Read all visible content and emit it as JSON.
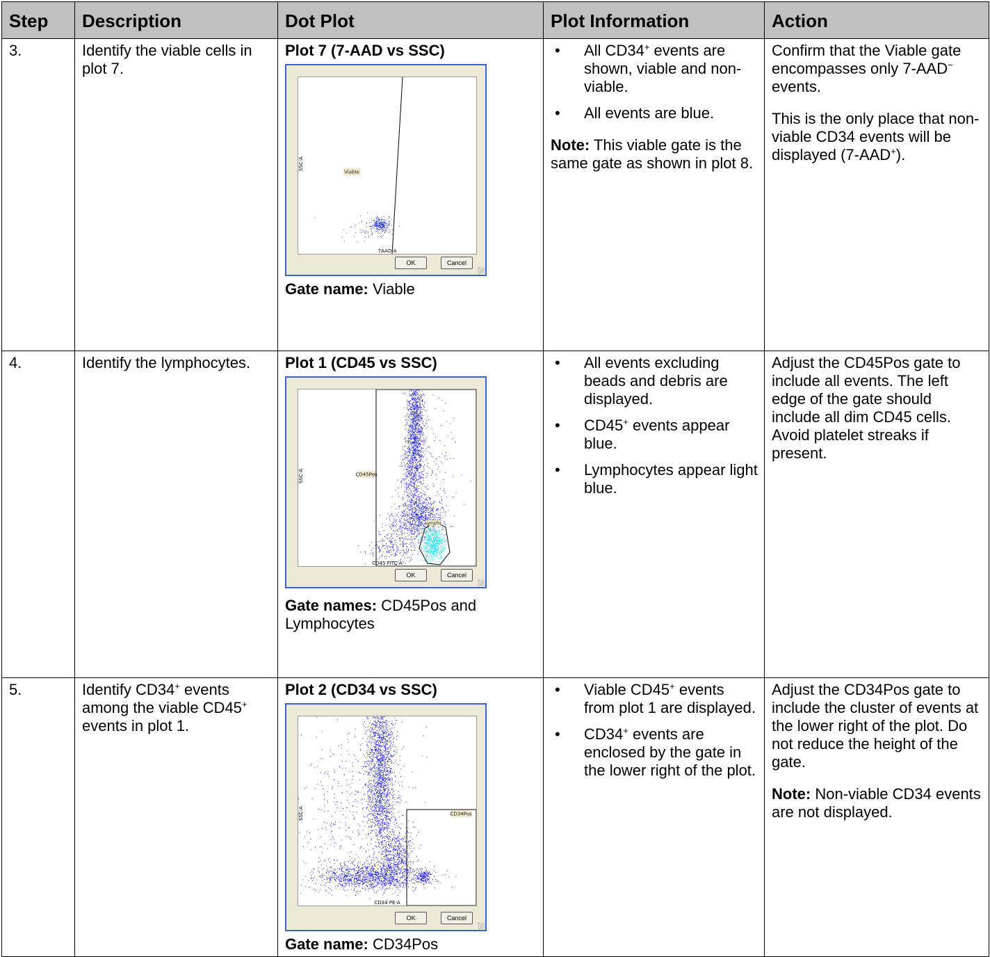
{
  "headers": {
    "step": "Step",
    "description": "Description",
    "dot_plot": "Dot Plot",
    "plot_info": "Plot Information",
    "action": "Action"
  },
  "rows": [
    {
      "step": "3.",
      "description": "Identify the viable cells in plot 7.",
      "plot_title": "Plot 7 (7-AAD vs SSC)",
      "gate_label": "Gate name:",
      "gate_value": " Viable",
      "info": [
        "All CD34⁺ events are shown, viable and non-viable.",
        "All events are blue."
      ],
      "note_label": "Note:",
      "note_text": " This viable gate is the same gate as shown in plot 8.",
      "action_1": "Confirm that the Viable gate encompasses only 7-AAD⁻ events.",
      "action_2": "This is the only place that non-viable CD34 events will be displayed (7-AAD⁺).",
      "plot": {
        "y_axis": "SSC-A",
        "x_axis": "7AAD-A",
        "gate_label": "Viable",
        "ok": "OK",
        "cancel": "Cancel",
        "event_color": "#2b3bd6"
      }
    },
    {
      "step": "4.",
      "description": "Identify the lymphocytes.",
      "plot_title": "Plot 1 (CD45 vs SSC)",
      "gate_label": "Gate names:",
      "gate_value": " CD45Pos and Lymphocytes",
      "info": [
        "All events excluding beads and debris are displayed.",
        "CD45⁺ events appear blue.",
        "Lymphocytes appear light blue."
      ],
      "action_1": "Adjust the CD45Pos gate to include all events. The left edge of the gate should include all dim CD45 cells. Avoid platelet streaks if present.",
      "plot": {
        "y_axis": "SSC-A",
        "x_axis": "CD45 FITC-A",
        "gate_label": "CD45Pos",
        "gate_label_2": "Lymphs",
        "ok": "OK",
        "cancel": "Cancel",
        "event_color": "#1a1ae6",
        "lymph_color": "#22e0ee"
      }
    },
    {
      "step": "5.",
      "description": "Identify CD34⁺ events among the viable CD45⁺ events in plot 1.",
      "plot_title": "Plot 2 (CD34 vs SSC)",
      "gate_label": "Gate name:",
      "gate_value": " CD34Pos",
      "info": [
        "Viable CD45⁺ events from plot 1 are displayed.",
        "CD34⁺ events are enclosed by the gate in the lower right of the plot."
      ],
      "action_1": "Adjust the CD34Pos gate to include the cluster of events at the lower right of the plot. Do not reduce the height of the gate.",
      "note_label": "Note:",
      "note_text": " Non-viable CD34 events are not displayed.",
      "plot": {
        "y_axis": "SSC-A",
        "x_axis": "CD34 PE-A",
        "gate_label": "CD34Pos",
        "ok": "OK",
        "cancel": "Cancel",
        "event_color": "#1010e0"
      }
    }
  ]
}
